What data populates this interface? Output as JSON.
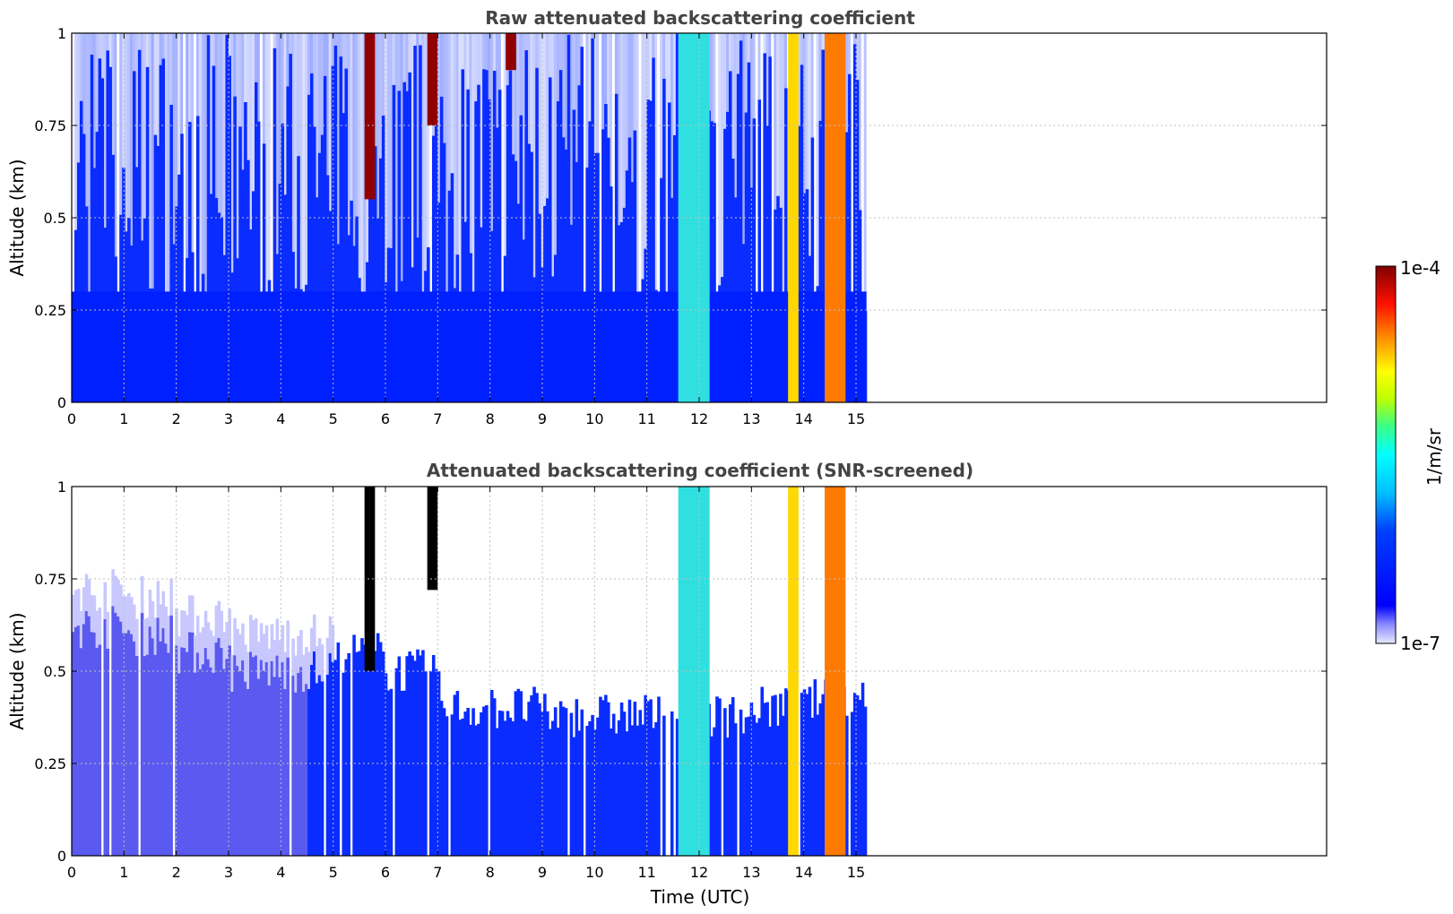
{
  "chart_data": [
    {
      "type": "heatmap",
      "title": "Raw attenuated backscattering coefficient",
      "xlabel": "",
      "ylabel": "Altitude (km)",
      "xlim": [
        0,
        24
      ],
      "ylim": [
        0,
        1
      ],
      "x_ticks": [
        "0",
        "1",
        "2",
        "3",
        "4",
        "5",
        "6",
        "7",
        "8",
        "9",
        "10",
        "11",
        "12",
        "13",
        "14",
        "15"
      ],
      "y_ticks": [
        "0",
        "0.25",
        "0.5",
        "0.75",
        "1"
      ],
      "grid": true,
      "data_extent_hours": [
        0,
        15.2
      ],
      "features": [
        {
          "name": "near-surface layer",
          "x": [
            0,
            15.2
          ],
          "y": [
            0,
            0.3
          ],
          "level": "blue"
        },
        {
          "name": "cloud",
          "x": [
            5.6,
            5.8
          ],
          "y": [
            0.55,
            1.0
          ],
          "level": "dark red"
        },
        {
          "name": "cloud",
          "x": [
            6.8,
            7.0
          ],
          "y": [
            0.75,
            1.0
          ],
          "level": "dark red"
        },
        {
          "name": "cloud",
          "x": [
            8.3,
            8.5
          ],
          "y": [
            0.9,
            1.0
          ],
          "level": "dark red"
        },
        {
          "name": "precipitation",
          "x": [
            11.6,
            12.2
          ],
          "y": [
            0,
            1.0
          ],
          "level": "cyan-yellow"
        },
        {
          "name": "precipitation",
          "x": [
            13.7,
            13.9
          ],
          "y": [
            0,
            1.0
          ],
          "level": "yellow"
        },
        {
          "name": "precipitation",
          "x": [
            14.4,
            14.8
          ],
          "y": [
            0,
            1.0
          ],
          "level": "orange"
        }
      ]
    },
    {
      "type": "heatmap",
      "title": "Attenuated backscattering coefficient (SNR-screened)",
      "xlabel": "Time (UTC)",
      "ylabel": "Altitude (km)",
      "xlim": [
        0,
        24
      ],
      "ylim": [
        0,
        1
      ],
      "x_ticks": [
        "0",
        "1",
        "2",
        "3",
        "4",
        "5",
        "6",
        "7",
        "8",
        "9",
        "10",
        "11",
        "12",
        "13",
        "14",
        "15"
      ],
      "y_ticks": [
        "0",
        "0.25",
        "0.5",
        "0.75",
        "1"
      ],
      "grid": true,
      "data_extent_hours": [
        0,
        15.2
      ],
      "boundary_layer_top_km": [
        0.62,
        0.6,
        0.55,
        0.5,
        0.5,
        0.55,
        0.5,
        0.4,
        0.4,
        0.38,
        0.38,
        0.38,
        0.38,
        0.4,
        0.42,
        0.45
      ],
      "features": [
        {
          "name": "cloud",
          "x": [
            5.6,
            5.8
          ],
          "y": [
            0.5,
            1.0
          ],
          "level": "black"
        },
        {
          "name": "cloud",
          "x": [
            6.8,
            7.0
          ],
          "y": [
            0.72,
            1.0
          ],
          "level": "black"
        },
        {
          "name": "precipitation",
          "x": [
            11.6,
            12.2
          ],
          "y": [
            0,
            1.0
          ],
          "level": "cyan-yellow"
        },
        {
          "name": "precipitation",
          "x": [
            13.7,
            13.9
          ],
          "y": [
            0,
            1.0
          ],
          "level": "yellow"
        },
        {
          "name": "precipitation",
          "x": [
            14.4,
            14.8
          ],
          "y": [
            0,
            1.0
          ],
          "level": "orange"
        }
      ]
    }
  ],
  "colorbar": {
    "label": "1/m/sr",
    "max_label": "1e-4",
    "min_label": "1e-7",
    "scale": "log",
    "range": [
      1e-07,
      0.0001
    ],
    "colormap": "jet"
  }
}
